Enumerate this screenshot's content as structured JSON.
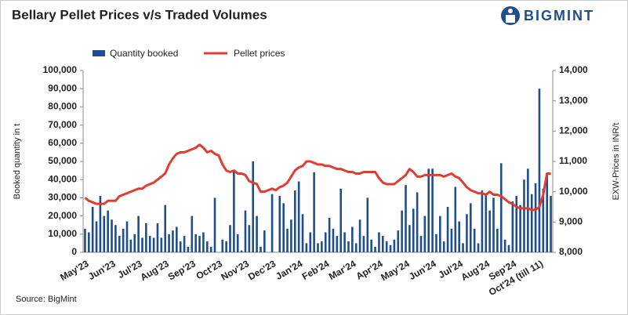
{
  "chart_data": {
    "type": "bar-line",
    "title": "Bellary Pellet Prices v/s Traded Volumes",
    "brand": "BIGMINT",
    "source": "Source: BigMint",
    "y_label": "Booked quantity in t",
    "y2_label": "EXW-Prices in INR/t",
    "categories": [
      "May'23",
      null,
      null,
      null,
      null,
      null,
      null,
      "Jun'23",
      null,
      null,
      null,
      null,
      null,
      null,
      "Jul'23",
      null,
      null,
      null,
      null,
      null,
      null,
      "Aug'23",
      null,
      null,
      null,
      null,
      null,
      null,
      "Sep'23",
      null,
      null,
      null,
      null,
      null,
      null,
      "Oct'23",
      null,
      null,
      null,
      null,
      null,
      null,
      "Nov'23",
      null,
      null,
      null,
      null,
      null,
      null,
      "Dec'23",
      null,
      null,
      null,
      null,
      null,
      null,
      "Jan'24",
      null,
      null,
      null,
      null,
      null,
      null,
      "Feb'24",
      null,
      null,
      null,
      null,
      null,
      null,
      "Mar'24",
      null,
      null,
      null,
      null,
      null,
      null,
      "Apr'24",
      null,
      null,
      null,
      null,
      null,
      null,
      "May'24",
      null,
      null,
      null,
      null,
      null,
      null,
      "Jun'24",
      null,
      null,
      null,
      null,
      null,
      null,
      "Jul'24",
      null,
      null,
      null,
      null,
      null,
      null,
      "Aug'24",
      null,
      null,
      null,
      null,
      null,
      null,
      "Sep'24",
      null,
      null,
      null,
      null,
      null,
      null,
      "Oct'24 (till 11)",
      null,
      null,
      null
    ],
    "series": [
      {
        "name": "Quantity booked",
        "color": "#1f4e8c",
        "kind": "bar",
        "values": [
          13000,
          11000,
          25000,
          17000,
          31000,
          20000,
          23000,
          18000,
          15000,
          9000,
          13000,
          17000,
          7000,
          10000,
          20000,
          8000,
          16000,
          9000,
          8000,
          16000,
          8000,
          26000,
          10000,
          12000,
          14000,
          6000,
          9000,
          3000,
          20000,
          10000,
          9000,
          11000,
          6000,
          3000,
          30000,
          0,
          7000,
          6000,
          15000,
          45000,
          10000,
          1000,
          23000,
          15000,
          50000,
          20000,
          3000,
          12000,
          0,
          32000,
          0,
          31000,
          27000,
          13000,
          18000,
          34000,
          39000,
          21000,
          5000,
          11000,
          44000,
          5000,
          6000,
          11000,
          19000,
          13000,
          9000,
          35000,
          11000,
          6000,
          14000,
          5000,
          18000,
          9000,
          30000,
          7000,
          3000,
          11000,
          9000,
          6000,
          4000,
          7000,
          12000,
          23000,
          37000,
          15000,
          24000,
          33000,
          9000,
          20000,
          46000,
          46000,
          10000,
          20000,
          6000,
          25000,
          13000,
          36000,
          17000,
          5000,
          21000,
          27000,
          13000,
          5000,
          34000,
          32000,
          23000,
          30000,
          13000,
          49000,
          7000,
          4000,
          28000,
          31000,
          26000,
          40000,
          46000,
          32000,
          38000,
          90000,
          35000,
          43000,
          31000
        ]
      },
      {
        "name": "Pellet prices",
        "color": "#e03c31",
        "kind": "line",
        "axis": "y2",
        "values": [
          9800,
          9700,
          9650,
          9600,
          9600,
          9600,
          9700,
          9700,
          9700,
          9850,
          9900,
          9950,
          10000,
          10050,
          10100,
          10100,
          10200,
          10250,
          10300,
          10400,
          10500,
          10600,
          10900,
          11100,
          11250,
          11300,
          11300,
          11350,
          11400,
          11450,
          11550,
          11450,
          11300,
          11350,
          11250,
          11200,
          10900,
          10700,
          10650,
          10700,
          10600,
          10600,
          10550,
          10350,
          10300,
          10250,
          10000,
          10000,
          10050,
          10100,
          10050,
          10150,
          10200,
          10300,
          10500,
          10700,
          10800,
          10850,
          11000,
          11000,
          10950,
          10900,
          10900,
          10850,
          10850,
          10800,
          10750,
          10750,
          10700,
          10650,
          10650,
          10600,
          10600,
          10650,
          10650,
          10650,
          10650,
          10450,
          10300,
          10250,
          10250,
          10250,
          10350,
          10450,
          10550,
          10750,
          10650,
          10500,
          10500,
          10550,
          10550,
          10550,
          10550,
          10550,
          10500,
          10550,
          10600,
          10500,
          10450,
          10300,
          10150,
          10050,
          10000,
          9950,
          9950,
          9900,
          10000,
          9900,
          9900,
          9850,
          9750,
          9650,
          9600,
          9500,
          9450,
          9450,
          9450,
          9400,
          9400,
          9500,
          9900,
          10600,
          10600
        ]
      }
    ],
    "ylim": [
      0,
      100000
    ],
    "yticks": [
      0,
      {
        "value": 10000,
        "label": "10,000"
      },
      {
        "value": 20000,
        "label": "20,000"
      },
      {
        "value": 30000,
        "label": "30,000"
      },
      {
        "value": 40000,
        "label": "40,000"
      },
      {
        "value": 50000,
        "label": "50,000"
      },
      {
        "value": 60000,
        "label": "60,000"
      },
      {
        "value": 70000,
        "label": "70,000"
      },
      {
        "value": 80000,
        "label": "80,000"
      },
      {
        "value": 90000,
        "label": "90,000"
      },
      {
        "value": 100000,
        "label": "100,000"
      }
    ],
    "y2lim": [
      8000,
      14000
    ],
    "y2ticks": [
      {
        "value": 8000,
        "label": "8,000"
      },
      {
        "value": 9000,
        "label": "9,000"
      },
      {
        "value": 10000,
        "label": "10,000"
      },
      {
        "value": 11000,
        "label": "11,000"
      },
      {
        "value": 12000,
        "label": "12,000"
      },
      {
        "value": 13000,
        "label": "13,000"
      },
      {
        "value": 14000,
        "label": "14,000"
      }
    ],
    "legend": "top"
  }
}
